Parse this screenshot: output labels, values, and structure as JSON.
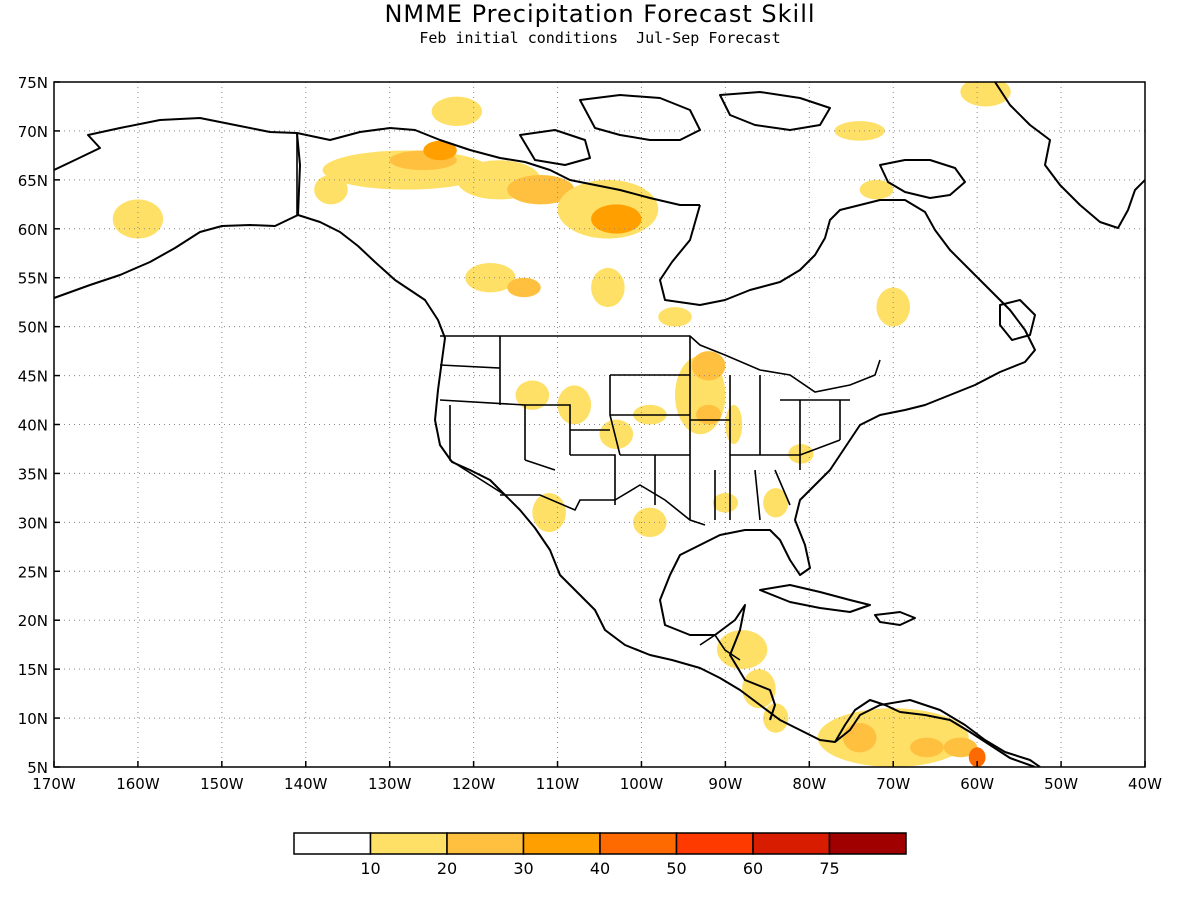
{
  "header": {
    "title": "NMME Precipitation Forecast Skill",
    "subtitle_left": "Feb initial conditions",
    "subtitle_right": "Jul-Sep Forecast"
  },
  "map": {
    "lon_range": [
      -170,
      -40
    ],
    "lat_range": [
      5,
      75
    ],
    "lon_labels": [
      "170W",
      "160W",
      "150W",
      "140W",
      "130W",
      "120W",
      "110W",
      "100W",
      "90W",
      "80W",
      "70W",
      "60W",
      "50W",
      "40W"
    ],
    "lat_labels": [
      "5N",
      "10N",
      "15N",
      "20N",
      "25N",
      "30N",
      "35N",
      "40N",
      "45N",
      "50N",
      "55N",
      "60N",
      "65N",
      "70N",
      "75N"
    ],
    "grid": "dotted",
    "skill_regions": [
      {
        "lon": -160,
        "lat": 61,
        "rx": 3,
        "ry": 2,
        "level": 1
      },
      {
        "lon": -137,
        "lat": 64,
        "rx": 2,
        "ry": 1.5,
        "level": 1
      },
      {
        "lon": -128,
        "lat": 66,
        "rx": 10,
        "ry": 2,
        "level": 1
      },
      {
        "lon": -126,
        "lat": 67,
        "rx": 4,
        "ry": 1,
        "level": 2
      },
      {
        "lon": -124,
        "lat": 68,
        "rx": 2,
        "ry": 1,
        "level": 3
      },
      {
        "lon": -117,
        "lat": 65,
        "rx": 5,
        "ry": 2,
        "level": 1
      },
      {
        "lon": -112,
        "lat": 64,
        "rx": 4,
        "ry": 1.5,
        "level": 2
      },
      {
        "lon": -104,
        "lat": 62,
        "rx": 6,
        "ry": 3,
        "level": 1
      },
      {
        "lon": -103,
        "lat": 61,
        "rx": 3,
        "ry": 1.5,
        "level": 3
      },
      {
        "lon": -122,
        "lat": 72,
        "rx": 3,
        "ry": 1.5,
        "level": 1
      },
      {
        "lon": -118,
        "lat": 55,
        "rx": 3,
        "ry": 1.5,
        "level": 1
      },
      {
        "lon": -114,
        "lat": 54,
        "rx": 2,
        "ry": 1,
        "level": 2
      },
      {
        "lon": -104,
        "lat": 54,
        "rx": 2,
        "ry": 2,
        "level": 1
      },
      {
        "lon": -96,
        "lat": 51,
        "rx": 2,
        "ry": 1,
        "level": 1
      },
      {
        "lon": -74,
        "lat": 70,
        "rx": 3,
        "ry": 1,
        "level": 1
      },
      {
        "lon": -72,
        "lat": 64,
        "rx": 2,
        "ry": 1,
        "level": 1
      },
      {
        "lon": -70,
        "lat": 52,
        "rx": 2,
        "ry": 2,
        "level": 1
      },
      {
        "lon": -59,
        "lat": 74,
        "rx": 3,
        "ry": 1.5,
        "level": 1
      },
      {
        "lon": -113,
        "lat": 43,
        "rx": 2,
        "ry": 1.5,
        "level": 1
      },
      {
        "lon": -108,
        "lat": 42,
        "rx": 2,
        "ry": 2,
        "level": 1
      },
      {
        "lon": -103,
        "lat": 39,
        "rx": 2,
        "ry": 1.5,
        "level": 1
      },
      {
        "lon": -99,
        "lat": 41,
        "rx": 2,
        "ry": 1,
        "level": 1
      },
      {
        "lon": -93,
        "lat": 43,
        "rx": 3,
        "ry": 4,
        "level": 1
      },
      {
        "lon": -92,
        "lat": 46,
        "rx": 2,
        "ry": 1.5,
        "level": 2
      },
      {
        "lon": -92,
        "lat": 41,
        "rx": 1.5,
        "ry": 1,
        "level": 2
      },
      {
        "lon": -89,
        "lat": 40,
        "rx": 1,
        "ry": 2,
        "level": 1
      },
      {
        "lon": -111,
        "lat": 31,
        "rx": 2,
        "ry": 2,
        "level": 1
      },
      {
        "lon": -99,
        "lat": 30,
        "rx": 2,
        "ry": 1.5,
        "level": 1
      },
      {
        "lon": -90,
        "lat": 32,
        "rx": 1.5,
        "ry": 1,
        "level": 1
      },
      {
        "lon": -84,
        "lat": 32,
        "rx": 1.5,
        "ry": 1.5,
        "level": 1
      },
      {
        "lon": -81,
        "lat": 37,
        "rx": 1.5,
        "ry": 1,
        "level": 1
      },
      {
        "lon": -88,
        "lat": 17,
        "rx": 3,
        "ry": 2,
        "level": 1
      },
      {
        "lon": -86,
        "lat": 13,
        "rx": 2,
        "ry": 2,
        "level": 1
      },
      {
        "lon": -84,
        "lat": 10,
        "rx": 1.5,
        "ry": 1.5,
        "level": 1
      },
      {
        "lon": -70,
        "lat": 8,
        "rx": 9,
        "ry": 3,
        "level": 1
      },
      {
        "lon": -74,
        "lat": 8,
        "rx": 2,
        "ry": 1.5,
        "level": 2
      },
      {
        "lon": -66,
        "lat": 7,
        "rx": 2,
        "ry": 1,
        "level": 2
      },
      {
        "lon": -62,
        "lat": 7,
        "rx": 2,
        "ry": 1,
        "level": 2
      },
      {
        "lon": -60,
        "lat": 6,
        "rx": 1,
        "ry": 1,
        "level": 4
      }
    ]
  },
  "colorbar": {
    "colors": [
      "#ffffff",
      "#ffe066",
      "#ffc040",
      "#ffa000",
      "#ff6a00",
      "#ff3a00",
      "#d81c00",
      "#a00000"
    ],
    "labels": [
      "10",
      "20",
      "30",
      "40",
      "50",
      "60",
      "75"
    ]
  }
}
